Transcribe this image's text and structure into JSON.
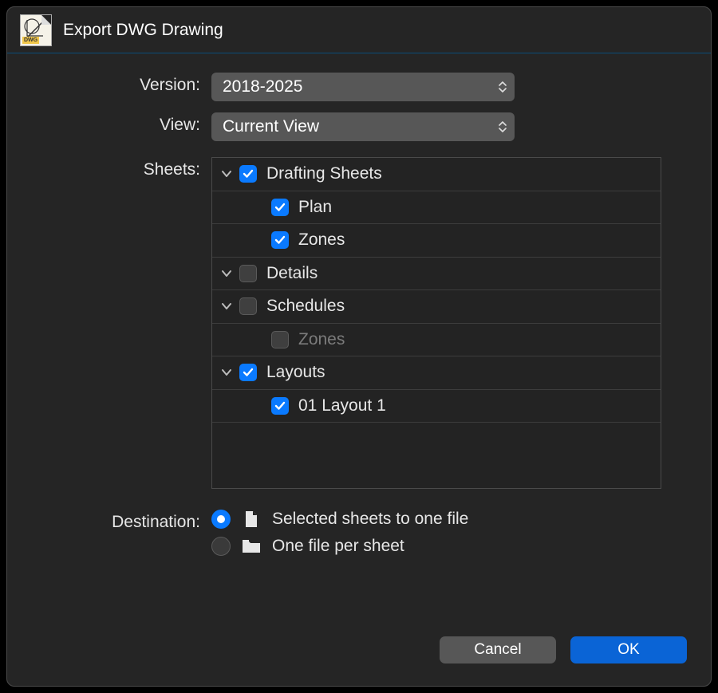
{
  "window": {
    "title": "Export DWG Drawing",
    "icon_badge": "DWG"
  },
  "colors": {
    "accent": "#0a7aff",
    "primary_button": "#0a64d6",
    "secondary_button": "#575757",
    "background": "#252525",
    "tree_bg": "#232323",
    "border": "#4a4a4a",
    "text": "#e7e7e7",
    "dim_text": "#7b7b7b"
  },
  "labels": {
    "version": "Version:",
    "view": "View:",
    "sheets": "Sheets:",
    "destination": "Destination:"
  },
  "version": {
    "selected": "2018-2025"
  },
  "view": {
    "selected": "Current View"
  },
  "tree": {
    "items": [
      {
        "label": "Drafting Sheets",
        "level": 1,
        "expanded": true,
        "has_children": true,
        "checked": true,
        "dimmed": false
      },
      {
        "label": "Plan",
        "level": 2,
        "expanded": false,
        "has_children": false,
        "checked": true,
        "dimmed": false
      },
      {
        "label": "Zones",
        "level": 2,
        "expanded": false,
        "has_children": false,
        "checked": true,
        "dimmed": false
      },
      {
        "label": "Details",
        "level": 1,
        "expanded": true,
        "has_children": true,
        "checked": false,
        "dimmed": false
      },
      {
        "label": "Schedules",
        "level": 1,
        "expanded": true,
        "has_children": true,
        "checked": false,
        "dimmed": false
      },
      {
        "label": "Zones",
        "level": 2,
        "expanded": false,
        "has_children": false,
        "checked": false,
        "dimmed": true
      },
      {
        "label": "Layouts",
        "level": 1,
        "expanded": true,
        "has_children": true,
        "checked": true,
        "dimmed": false
      },
      {
        "label": "01 Layout 1",
        "level": 2,
        "expanded": false,
        "has_children": false,
        "checked": true,
        "dimmed": false
      }
    ]
  },
  "destination": {
    "selected_index": 0,
    "options": [
      {
        "label": "Selected sheets to one file",
        "icon": "file"
      },
      {
        "label": "One file per sheet",
        "icon": "folder"
      }
    ]
  },
  "buttons": {
    "cancel": "Cancel",
    "ok": "OK"
  }
}
